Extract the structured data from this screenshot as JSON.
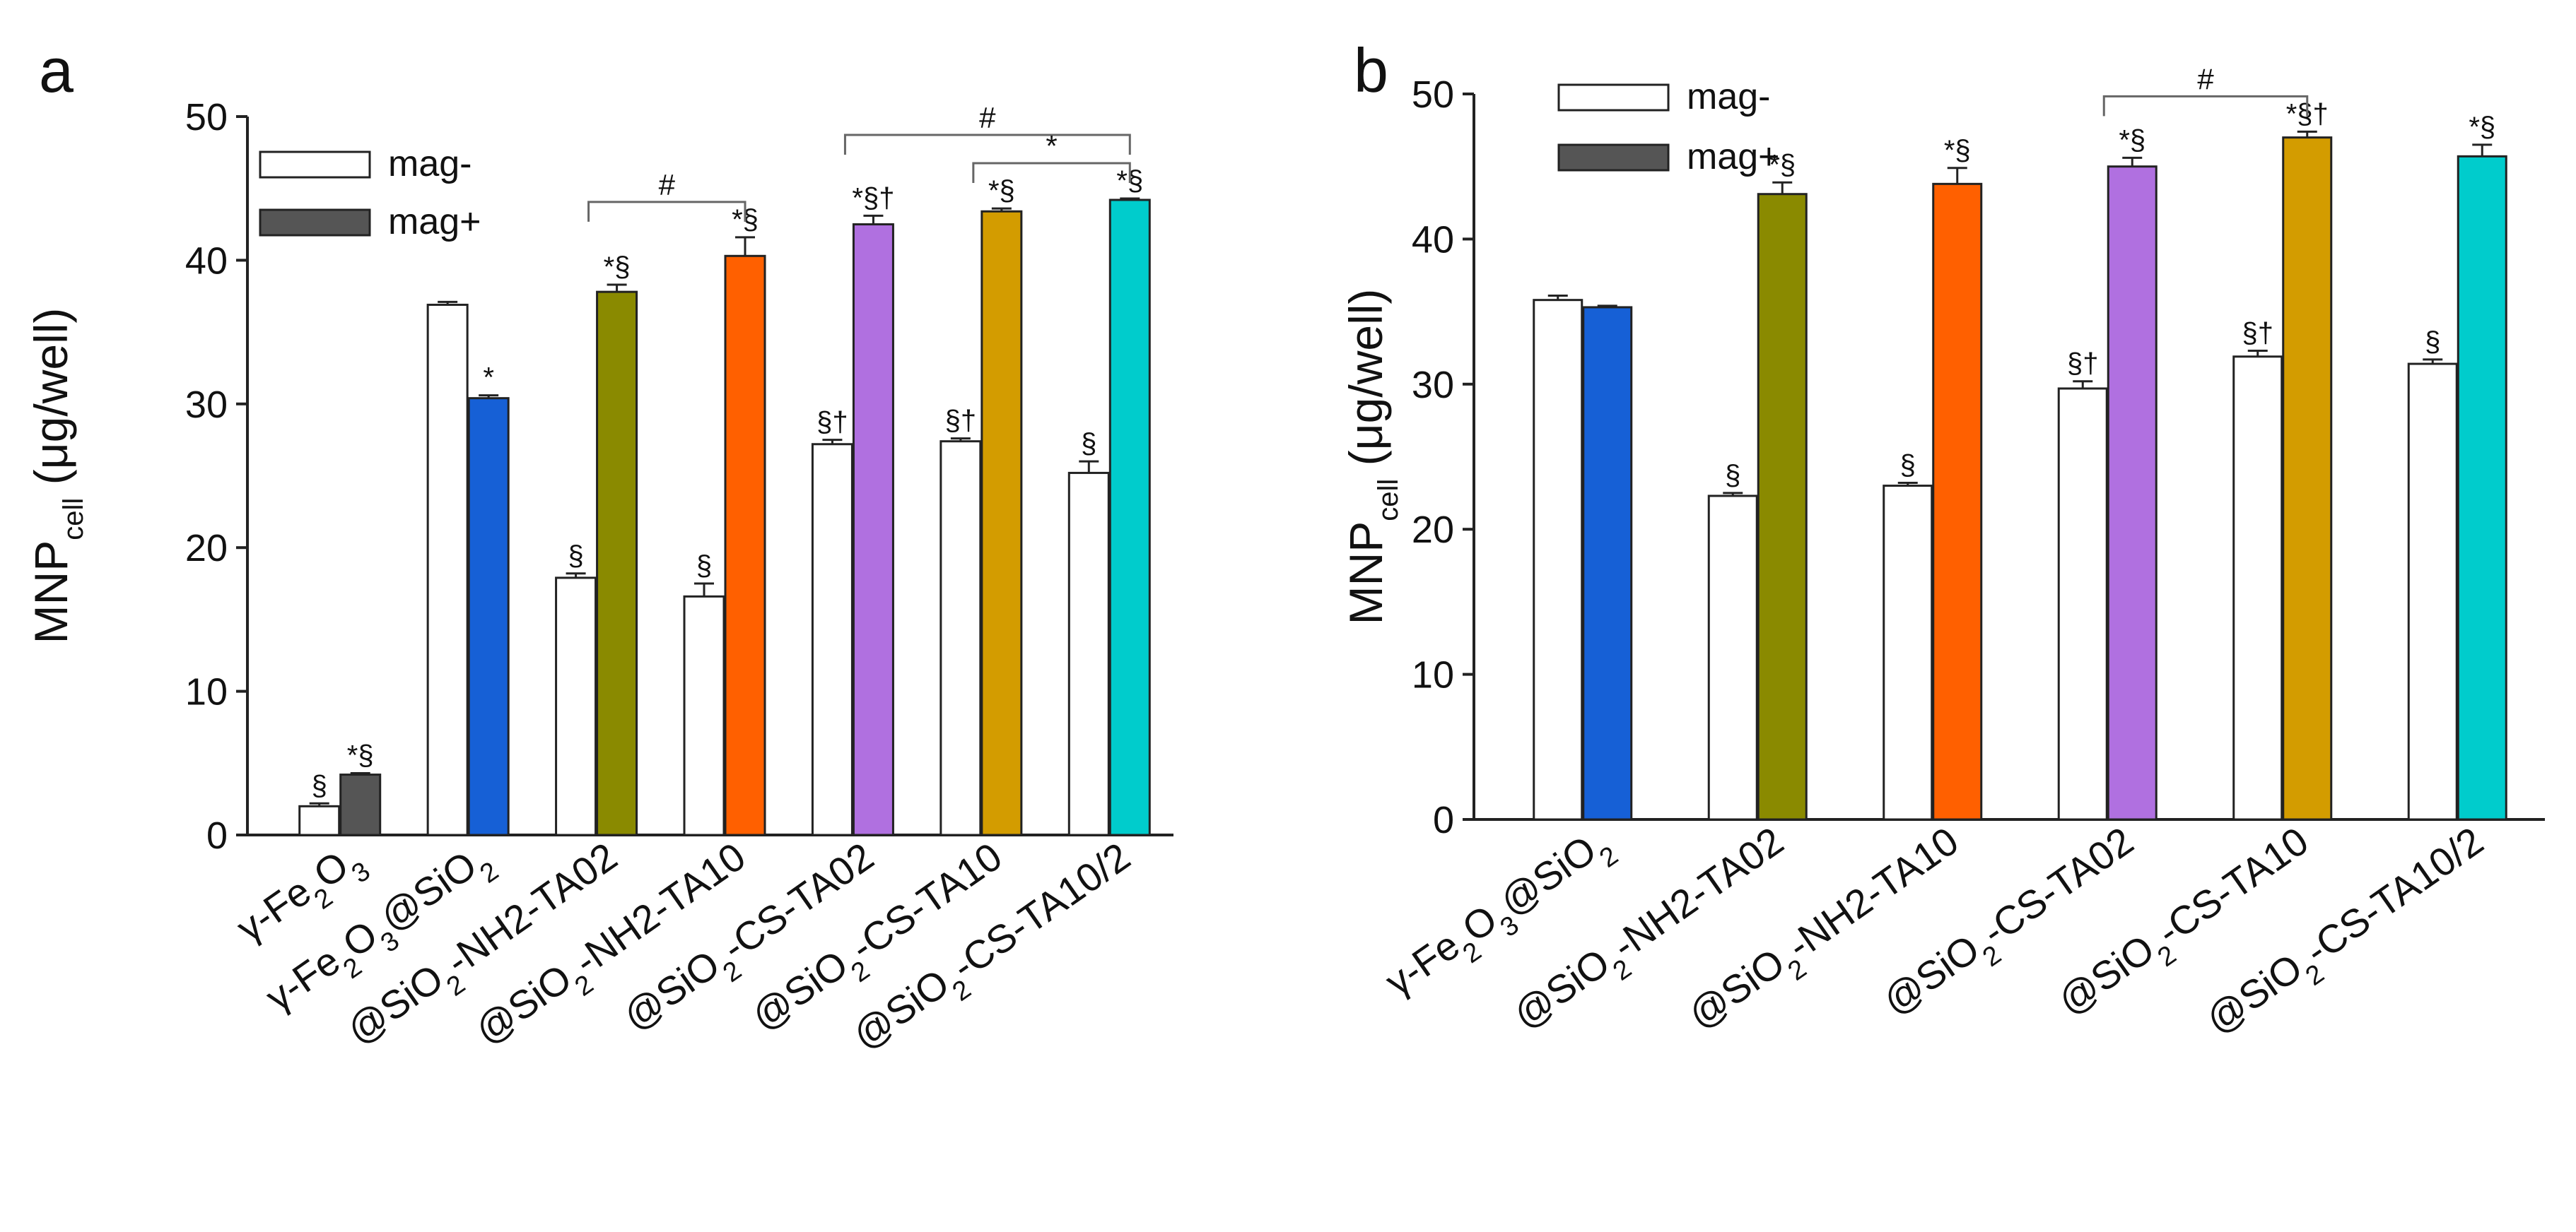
{
  "chart_data": [
    {
      "type": "bar",
      "panel_label": "a",
      "title": "",
      "xlabel": "",
      "ylabel": "MNP",
      "ylabel_sub": "cell",
      "ylabel_unit": "(μg/well)",
      "ylim": [
        0,
        50
      ],
      "yticks": [
        "0",
        "10",
        "20",
        "30",
        "40",
        "50"
      ],
      "legend": [
        "mag-",
        "mag+"
      ],
      "legend_position": "top-left",
      "categories": [
        "γ-Fe2O3",
        "γ-Fe2O3@SiO2",
        "@SiO2-NH2-TA02",
        "@SiO2-NH2-TA10",
        "@SiO2-CS-TA02",
        "@SiO2-CS-TA10",
        "@SiO2-CS-TA10/2"
      ],
      "series": [
        {
          "name": "mag-",
          "values": [
            2.0,
            36.9,
            17.9,
            16.6,
            27.2,
            27.4,
            25.2
          ],
          "errors": [
            0.2,
            0.2,
            0.3,
            0.9,
            0.3,
            0.2,
            0.8
          ],
          "colors": [
            "#ffffff",
            "#ffffff",
            "#ffffff",
            "#ffffff",
            "#ffffff",
            "#ffffff",
            "#ffffff"
          ],
          "annotations": [
            "§",
            "",
            "§",
            "§",
            "§†",
            "§†",
            "§"
          ]
        },
        {
          "name": "mag+",
          "values": [
            4.2,
            30.4,
            37.8,
            40.3,
            42.5,
            43.4,
            44.2
          ],
          "errors": [
            0.1,
            0.2,
            0.5,
            1.3,
            0.6,
            0.2,
            0.1
          ],
          "colors": [
            "#555555",
            "#1660d6",
            "#8a8a00",
            "#ff6000",
            "#b070e0",
            "#d39c00",
            "#00cccc"
          ],
          "annotations": [
            "*§",
            "*",
            "*§",
            "*§",
            "*§†",
            "*§",
            "*§"
          ]
        }
      ],
      "comparisons": [
        {
          "from": 2,
          "to": 3,
          "mark": "#"
        },
        {
          "from": 4,
          "to": 6,
          "mark": "#"
        },
        {
          "from": 5,
          "to": 6,
          "mark": "*"
        }
      ]
    },
    {
      "type": "bar",
      "panel_label": "b",
      "title": "",
      "xlabel": "",
      "ylabel": "MNP",
      "ylabel_sub": "cell",
      "ylabel_unit": "(μg/well)",
      "ylim": [
        0,
        50
      ],
      "yticks": [
        "0",
        "10",
        "20",
        "30",
        "40",
        "50"
      ],
      "legend": [
        "mag-",
        "mag+"
      ],
      "legend_position": "top-left",
      "categories": [
        "γ-Fe2O3@SiO2",
        "@SiO2-NH2-TA02",
        "@SiO2-NH2-TA10",
        "@SiO2-CS-TA02",
        "@SiO2-CS-TA10",
        "@SiO2-CS-TA10/2"
      ],
      "series": [
        {
          "name": "mag-",
          "values": [
            35.8,
            22.3,
            23.0,
            29.7,
            31.9,
            31.4
          ],
          "errors": [
            0.3,
            0.2,
            0.2,
            0.5,
            0.4,
            0.3
          ],
          "colors": [
            "#ffffff",
            "#ffffff",
            "#ffffff",
            "#ffffff",
            "#ffffff",
            "#ffffff"
          ],
          "annotations": [
            "",
            "§",
            "§",
            "§†",
            "§†",
            "§"
          ]
        },
        {
          "name": "mag+",
          "values": [
            35.3,
            43.1,
            43.8,
            45.0,
            47.0,
            45.7
          ],
          "errors": [
            0.1,
            0.8,
            1.1,
            0.6,
            0.4,
            0.8
          ],
          "colors": [
            "#1660d6",
            "#8a8a00",
            "#ff6000",
            "#b070e0",
            "#d39c00",
            "#00cccc"
          ],
          "annotations": [
            "",
            "*§",
            "*§",
            "*§",
            "*§†",
            "*§"
          ]
        }
      ],
      "comparisons": [
        {
          "from": 3,
          "to": 4,
          "mark": "#"
        }
      ]
    }
  ]
}
